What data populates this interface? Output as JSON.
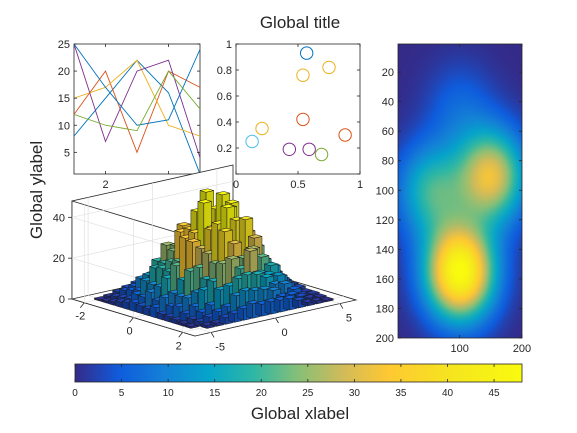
{
  "figure": {
    "title": "Global title",
    "xlabel": "Global xlabel",
    "ylabel": "Global ylabel"
  },
  "chart_data": [
    {
      "type": "line",
      "xlim": [
        1,
        5
      ],
      "ylim": [
        1,
        25
      ],
      "xticks": [
        "2",
        "4"
      ],
      "yticks": [
        "5",
        "10",
        "15",
        "20",
        "25"
      ],
      "grid": false,
      "series": [
        {
          "color": "#0072BD",
          "values": [
            8,
            15,
            22,
            16,
            1
          ]
        },
        {
          "color": "#D95319",
          "values": [
            12,
            20,
            5,
            20,
            17
          ]
        },
        {
          "color": "#EDB120",
          "values": [
            15,
            17,
            22,
            10,
            8
          ]
        },
        {
          "color": "#7E2F8E",
          "values": [
            25,
            7,
            20,
            22,
            4
          ]
        },
        {
          "color": "#0072BD",
          "values": [
            25,
            17,
            10,
            11,
            24
          ]
        },
        {
          "color": "#77AC30",
          "values": [
            12,
            10,
            9,
            20,
            13
          ]
        }
      ]
    },
    {
      "type": "scatter",
      "xlim": [
        0,
        1
      ],
      "ylim": [
        0,
        1
      ],
      "xticks": [
        "0",
        "0.5",
        "1"
      ],
      "yticks": [
        "0",
        "0.2",
        "0.4",
        "0.6",
        "0.8",
        "1"
      ],
      "marker": "circle-open",
      "points": [
        {
          "x": 0.13,
          "y": 0.25,
          "color": "#4DBEEE"
        },
        {
          "x": 0.21,
          "y": 0.35,
          "color": "#EDB120"
        },
        {
          "x": 0.43,
          "y": 0.19,
          "color": "#7E2F8E"
        },
        {
          "x": 0.54,
          "y": 0.76,
          "color": "#EDB120"
        },
        {
          "x": 0.54,
          "y": 0.42,
          "color": "#D95319"
        },
        {
          "x": 0.57,
          "y": 0.93,
          "color": "#0072BD"
        },
        {
          "x": 0.59,
          "y": 0.19,
          "color": "#7E2F8E"
        },
        {
          "x": 0.69,
          "y": 0.15,
          "color": "#77AC30"
        },
        {
          "x": 0.75,
          "y": 0.82,
          "color": "#EDB120"
        },
        {
          "x": 0.88,
          "y": 0.3,
          "color": "#D95319"
        }
      ]
    },
    {
      "type": "heatmap",
      "xlim": [
        1,
        200
      ],
      "ylim": [
        1,
        200
      ],
      "yreverse": true,
      "xticks": [
        "100",
        "200"
      ],
      "yticks": [
        "20",
        "40",
        "60",
        "80",
        "100",
        "120",
        "140",
        "160",
        "180",
        "200"
      ],
      "colormap": "parula",
      "peaks": [
        {
          "x": 100,
          "y": 155,
          "height": 48
        },
        {
          "x": 100,
          "y": 45,
          "height": 6
        },
        {
          "x": 55,
          "y": 100,
          "height": 19
        },
        {
          "x": 150,
          "y": 90,
          "height": 31
        }
      ]
    },
    {
      "type": "bar3d",
      "xticks": [
        "-5",
        "0",
        "5"
      ],
      "yticks": [
        "-2",
        "0",
        "2"
      ],
      "zticks": [
        "0",
        "20",
        "40"
      ],
      "zlim": [
        0,
        48
      ],
      "colormap": "parula"
    }
  ],
  "colorbar": {
    "min": 0,
    "max": 48,
    "ticks": [
      "0",
      "5",
      "10",
      "15",
      "20",
      "25",
      "30",
      "35",
      "40",
      "45"
    ]
  }
}
